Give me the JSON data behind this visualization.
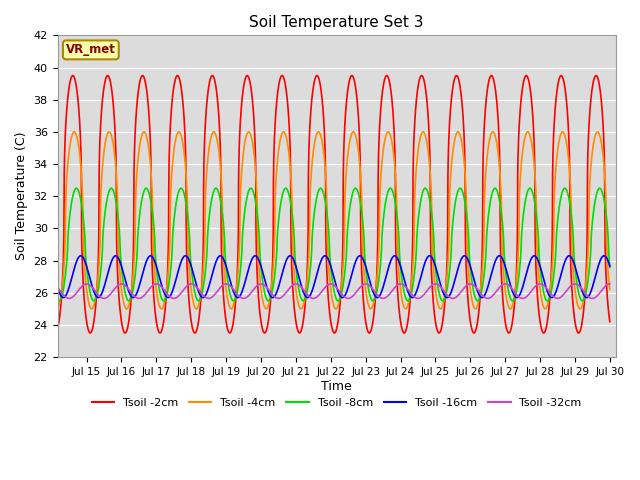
{
  "title": "Soil Temperature Set 3",
  "xlabel": "Time",
  "ylabel": "Soil Temperature (C)",
  "ylim": [
    22,
    42
  ],
  "annotation": "VR_met",
  "bg_color": "#dcdcdc",
  "fig_bg": "#ffffff",
  "x_tick_labels": [
    "Jul 15",
    "Jul 16",
    "Jul 17",
    "Jul 18",
    "Jul 19",
    "Jul 20",
    "Jul 21",
    "Jul 22",
    "Jul 23",
    "Jul 24",
    "Jul 25",
    "Jul 26",
    "Jul 27",
    "Jul 28",
    "Jul 29",
    "Jul 30"
  ],
  "x_tick_positions": [
    24,
    48,
    72,
    96,
    120,
    144,
    168,
    192,
    216,
    240,
    264,
    288,
    312,
    336,
    360,
    384
  ],
  "series": [
    {
      "label": "Tsoil -2cm",
      "color": "#ff0000",
      "amplitude": 8.0,
      "base": 31.5,
      "peak_hour": 14.5,
      "phase_extra": 0.0,
      "sharpness": 2.5,
      "period": 24,
      "noise": 0.0
    },
    {
      "label": "Tsoil -4cm",
      "color": "#ff8c00",
      "amplitude": 5.5,
      "base": 30.5,
      "peak_hour": 15.5,
      "phase_extra": 0.0,
      "sharpness": 2.0,
      "period": 24,
      "noise": 0.0
    },
    {
      "label": "Tsoil -8cm",
      "color": "#00dd00",
      "amplitude": 3.5,
      "base": 29.0,
      "peak_hour": 17.0,
      "phase_extra": 0.0,
      "sharpness": 1.5,
      "period": 24,
      "noise": 0.0
    },
    {
      "label": "Tsoil -16cm",
      "color": "#0000ff",
      "amplitude": 1.3,
      "base": 27.0,
      "peak_hour": 20.0,
      "phase_extra": 0.0,
      "sharpness": 1.0,
      "period": 24,
      "noise": 0.0
    },
    {
      "label": "Tsoil -32cm",
      "color": "#cc44cc",
      "amplitude": 0.45,
      "base": 26.1,
      "peak_hour": 24.0,
      "phase_extra": 0.0,
      "sharpness": 1.0,
      "period": 24,
      "noise": 0.0
    }
  ]
}
